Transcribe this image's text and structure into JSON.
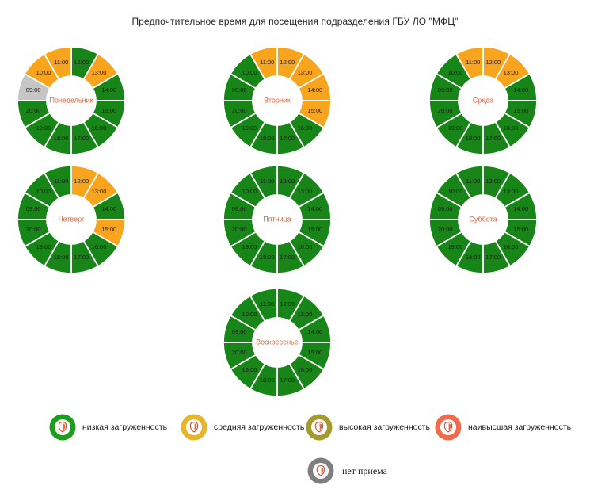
{
  "title": "Предпочтительное время для посещения подразделения ГБУ ЛО \"МФЦ\"",
  "chart_data": {
    "type": "pie",
    "variant": "donut-grid",
    "description": "7 donut charts, one per weekday; 12 equal segments per donut, clockwise from top, showing visitor load level per hour",
    "hours": [
      "12:00",
      "13:00",
      "14:00",
      "15:00",
      "16:00",
      "17:00",
      "18:00",
      "19:00",
      "20:00",
      "09:00",
      "10:00",
      "11:00"
    ],
    "days": [
      {
        "name": "Понедельник",
        "levels": [
          "low",
          "medium",
          "low",
          "low",
          "low",
          "low",
          "low",
          "low",
          "low",
          "none",
          "medium",
          "medium"
        ]
      },
      {
        "name": "Вторник",
        "levels": [
          "medium",
          "medium",
          "medium",
          "medium",
          "low",
          "low",
          "low",
          "low",
          "low",
          "low",
          "low",
          "medium"
        ]
      },
      {
        "name": "Среда",
        "levels": [
          "medium",
          "medium",
          "low",
          "low",
          "low",
          "low",
          "low",
          "low",
          "low",
          "low",
          "low",
          "medium"
        ]
      },
      {
        "name": "Четверг",
        "levels": [
          "medium",
          "medium",
          "low",
          "medium",
          "low",
          "low",
          "low",
          "low",
          "low",
          "low",
          "low",
          "low"
        ]
      },
      {
        "name": "Пятница",
        "levels": [
          "low",
          "low",
          "low",
          "low",
          "low",
          "low",
          "low",
          "low",
          "low",
          "low",
          "low",
          "low"
        ]
      },
      {
        "name": "Суббота",
        "levels": [
          "low",
          "low",
          "low",
          "low",
          "low",
          "low",
          "low",
          "low",
          "low",
          "low",
          "low",
          "low"
        ]
      },
      {
        "name": "Воскресенье",
        "levels": [
          "low",
          "low",
          "low",
          "low",
          "low",
          "low",
          "low",
          "low",
          "low",
          "low",
          "low",
          "low"
        ]
      }
    ]
  },
  "colors": {
    "segment": {
      "low": "#178517",
      "medium": "#f8a41c",
      "high": "#a49a2d",
      "highest": "#f26a4c",
      "none": "#c6c6c6"
    },
    "legend_icons": {
      "low": "#1b9e1b",
      "medium": "#e8b42a",
      "high": "#a49a2d",
      "highest": "#f26a4c",
      "none": "#7f7f7f"
    },
    "emblem_outline": "#d64f2e",
    "emblem_fill": "#ee6a35",
    "day_label": "#e2673f",
    "time_label": "#1c1c1c"
  },
  "legend": {
    "items": [
      {
        "key": "low",
        "label": "низкая загруженность"
      },
      {
        "key": "medium",
        "label": "средняя загруженность"
      },
      {
        "key": "high",
        "label": "высокая загруженность"
      },
      {
        "key": "highest",
        "label": "наивысшая загруженность"
      }
    ],
    "no_reception": {
      "key": "none",
      "label": "нет приема"
    }
  }
}
